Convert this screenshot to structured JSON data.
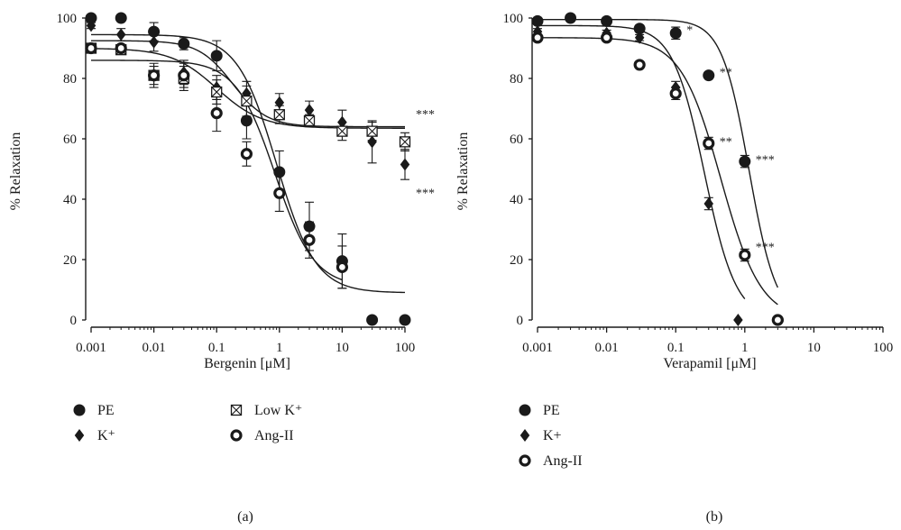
{
  "chart_data": [
    {
      "type": "scatter",
      "panel_label": "(a)",
      "xlabel": "Bergenin [μM]",
      "ylabel": "% Relaxation",
      "xscale": "log",
      "xlim": [
        0.001,
        100
      ],
      "ylim": [
        0,
        100
      ],
      "xticks": [
        "0.001",
        "0.01",
        "0.1",
        "1",
        "10",
        "100"
      ],
      "yticks": [
        "0",
        "20",
        "40",
        "60",
        "80",
        "100"
      ],
      "legend_position": "below",
      "series": [
        {
          "name": "PE",
          "marker": "filled-circle",
          "x": [
            0.001,
            0.003,
            0.01,
            0.03,
            0.1,
            0.3,
            1,
            3,
            10,
            30,
            100
          ],
          "y": [
            100,
            100,
            95.5,
            91.5,
            87.5,
            66,
            49,
            31,
            19.5,
            0,
            0
          ],
          "err": [
            1,
            1,
            3,
            2,
            5,
            6,
            7,
            8,
            9,
            0,
            0
          ],
          "fit": {
            "top": 94.5,
            "bottom": 9,
            "ec50": 0.9,
            "hill": 1.4
          }
        },
        {
          "name": "K⁺",
          "marker": "filled-diamond",
          "x": [
            0.001,
            0.003,
            0.01,
            0.03,
            0.1,
            0.3,
            1,
            3,
            10,
            30,
            100
          ],
          "y": [
            97.5,
            94.5,
            92,
            82,
            77,
            75,
            72,
            69.5,
            65.5,
            59,
            51.5
          ],
          "err": [
            1,
            2,
            3,
            4,
            4,
            4,
            3,
            3,
            4,
            7,
            5
          ],
          "fit": {
            "top": 92.5,
            "bottom": 64,
            "ec50": 0.18,
            "hill": 1.6
          }
        },
        {
          "name": "Low K⁺",
          "marker": "boxed-x",
          "x": [
            0.001,
            0.003,
            0.01,
            0.03,
            0.1,
            0.3,
            1,
            3,
            10,
            30,
            100
          ],
          "y": [
            90,
            89.5,
            81,
            80,
            75.5,
            72.5,
            68,
            66,
            62.5,
            62.5,
            59
          ],
          "err": [
            1,
            1,
            3,
            4,
            4,
            5,
            3,
            2,
            3,
            3,
            3
          ],
          "fit": {
            "top": 90,
            "bottom": 63.5,
            "ec50": 0.1,
            "hill": 1.2
          }
        },
        {
          "name": "Ang-II",
          "marker": "ring",
          "x": [
            0.001,
            0.003,
            0.01,
            0.03,
            0.1,
            0.3,
            1,
            3,
            10
          ],
          "y": [
            90,
            90,
            81,
            81,
            68.5,
            55,
            42,
            26.5,
            17.5
          ],
          "err": [
            1,
            1,
            4,
            4,
            6,
            4,
            6,
            6,
            7
          ],
          "fit": {
            "top": 86,
            "bottom": 11,
            "ec50": 0.85,
            "hill": 1.4
          }
        }
      ],
      "annotations": [
        {
          "text": "***",
          "near_series": "Low K⁺",
          "x": 100,
          "y": 68
        },
        {
          "text": "***",
          "near_series": "K⁺",
          "x": 100,
          "y": 42
        }
      ]
    },
    {
      "type": "scatter",
      "panel_label": "(b)",
      "xlabel": "Verapamil [μM]",
      "ylabel": "% Relaxation",
      "xscale": "log",
      "xlim": [
        0.001,
        100
      ],
      "ylim": [
        0,
        100
      ],
      "xticks": [
        "0.001",
        "0.01",
        "0.1",
        "1",
        "10",
        "100"
      ],
      "yticks": [
        "0",
        "20",
        "40",
        "60",
        "80",
        "100"
      ],
      "legend_position": "below",
      "series": [
        {
          "name": "PE",
          "marker": "filled-circle",
          "x": [
            0.001,
            0.003,
            0.01,
            0.03,
            0.1,
            0.3,
            1,
            3
          ],
          "y": [
            99,
            100,
            99,
            96.5,
            95,
            81,
            52.5,
            0
          ],
          "err": [
            1,
            1,
            1,
            1,
            2,
            1,
            2,
            0
          ],
          "fit": {
            "top": 99.5,
            "bottom": 0,
            "ec50": 1.15,
            "hill": 2.2
          }
        },
        {
          "name": "K+",
          "marker": "filled-diamond",
          "x": [
            0.001,
            0.01,
            0.03,
            0.1,
            0.3,
            0.8
          ],
          "y": [
            95.5,
            95,
            93.5,
            77,
            38.5,
            0
          ],
          "err": [
            1,
            1,
            1,
            2,
            2,
            0
          ],
          "fit": {
            "top": 97.5,
            "bottom": 0,
            "ec50": 0.26,
            "hill": 1.9
          }
        },
        {
          "name": "Ang-II",
          "marker": "ring",
          "x": [
            0.001,
            0.01,
            0.03,
            0.1,
            0.3,
            1,
            3
          ],
          "y": [
            93.5,
            93.5,
            84.5,
            75,
            58.5,
            21.5,
            0
          ],
          "err": [
            1,
            1,
            1,
            2,
            2,
            2,
            0
          ],
          "fit": {
            "top": 93.5,
            "bottom": 0,
            "ec50": 0.45,
            "hill": 1.5
          }
        }
      ],
      "annotations": [
        {
          "text": "*",
          "near_series": "PE",
          "x": 0.1,
          "y": 96
        },
        {
          "text": "**",
          "near_series": "PE",
          "x": 0.3,
          "y": 82
        },
        {
          "text": "***",
          "near_series": "PE",
          "x": 1,
          "y": 53
        },
        {
          "text": "**",
          "near_series": "Ang-II",
          "x": 0.3,
          "y": 59
        },
        {
          "text": "***",
          "near_series": "Ang-II",
          "x": 1,
          "y": 24
        }
      ]
    }
  ]
}
